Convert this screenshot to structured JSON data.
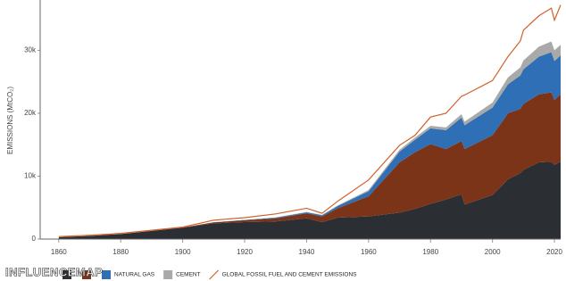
{
  "chart_data": {
    "type": "stacked-area-line",
    "y_label": "EMISSIONS (MtCO₂)",
    "x": [
      1860,
      1870,
      1880,
      1890,
      1900,
      1910,
      1920,
      1930,
      1940,
      1945,
      1950,
      1960,
      1970,
      1975,
      1980,
      1985,
      1990,
      1991,
      2000,
      2005,
      2009,
      2010,
      2015,
      2019,
      2020,
      2022
    ],
    "series": [
      {
        "color": "#2b2f33",
        "values": [
          300,
          500,
          800,
          1300,
          1800,
          2500,
          2700,
          2800,
          3300,
          2700,
          3400,
          3600,
          4200,
          4800,
          5600,
          6300,
          7100,
          5500,
          7000,
          9500,
          10500,
          11000,
          12200,
          12300,
          11800,
          12300
        ]
      },
      {
        "color": "#7b3418",
        "values": [
          0,
          0,
          0,
          20,
          50,
          150,
          300,
          500,
          800,
          900,
          1500,
          3200,
          8000,
          9000,
          9500,
          8000,
          8500,
          8800,
          9500,
          10500,
          10200,
          10500,
          10800,
          11000,
          10300,
          10700
        ]
      },
      {
        "name": "NATURAL GAS",
        "color": "#2f6fb6",
        "values": [
          0,
          0,
          0,
          0,
          0,
          20,
          50,
          100,
          150,
          200,
          350,
          800,
          1700,
          2000,
          2500,
          3000,
          3700,
          3800,
          4400,
          4600,
          5300,
          5500,
          6000,
          6400,
          6200,
          6200
        ]
      },
      {
        "name": "CEMENT",
        "color": "#a9a9a9",
        "values": [
          0,
          0,
          0,
          0,
          0,
          0,
          0,
          50,
          50,
          50,
          80,
          200,
          300,
          350,
          400,
          450,
          550,
          560,
          800,
          1100,
          1300,
          1400,
          1600,
          1700,
          1700,
          1700
        ]
      }
    ],
    "line": {
      "name": "GLOBAL FOSSIL FUEL AND CEMENT EMISSIONS",
      "color": "#d2602a",
      "values": [
        400,
        600,
        900,
        1400,
        1900,
        3000,
        3400,
        4000,
        4900,
        4100,
        6000,
        9400,
        14900,
        16500,
        19400,
        20000,
        22700,
        22900,
        25200,
        29000,
        31500,
        33200,
        35500,
        36700,
        34800,
        37200
      ]
    },
    "xlim": [
      1854,
      2022
    ],
    "ylim": [
      0,
      38000
    ],
    "xticks": [
      1860,
      1880,
      1900,
      1920,
      1940,
      1960,
      1980,
      2000,
      2020
    ],
    "yticks": [
      0,
      {
        "value": 10000,
        "label": "10k"
      },
      {
        "value": 20000,
        "label": "20k"
      },
      {
        "value": 30000,
        "label": "30k"
      }
    ],
    "watermark": "INFLUENCEMAP"
  }
}
